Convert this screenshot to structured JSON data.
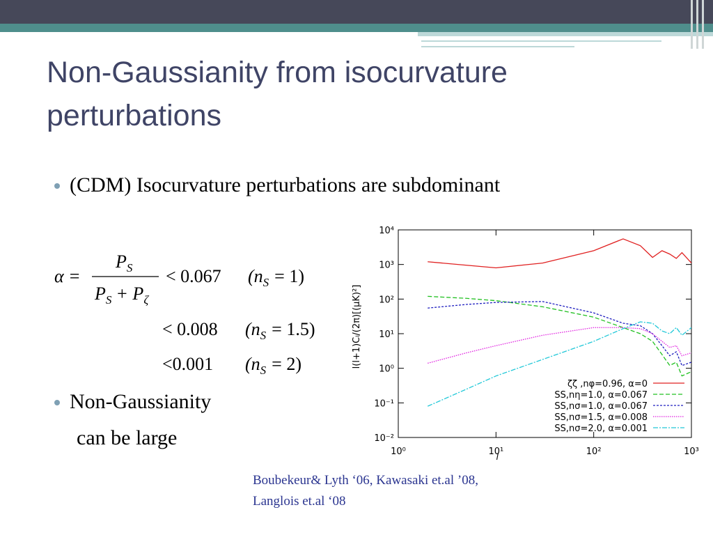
{
  "title": [
    "Non-Gaussianity from isocurvature",
    "perturbations"
  ],
  "bullets": [
    {
      "text": "(CDM) Isocurvature perturbations are subdominant"
    },
    {
      "text": "Non-Gaussianity",
      "continuation": "can be large"
    }
  ],
  "equation": {
    "lhs": "α =",
    "numerator": [
      "P",
      "S"
    ],
    "denominator": [
      "P",
      "S",
      "+ P",
      "ζ"
    ],
    "conditions": [
      {
        "bound": "< 0.067",
        "open": "(n",
        "sub": "S",
        "rhs": "= 1)"
      },
      {
        "bound": "< 0.008",
        "open": "(n",
        "sub": "S",
        "rhs": "= 1.5)"
      },
      {
        "bound": "<0.001",
        "open": "(n",
        "sub": "S",
        "rhs": "= 2)"
      }
    ]
  },
  "citation": [
    "Boubekeur& Lyth ‘06, Kawasaki et.al ’08,",
    "Langlois et.al ‘08"
  ],
  "chart_data": {
    "type": "line",
    "xlabel": "l",
    "ylabel": "l(l+1)Cₗ/(2π)[(μK)²]",
    "x": [
      2,
      5,
      10,
      30,
      100,
      200,
      300,
      400,
      500,
      600,
      700,
      800,
      1000
    ],
    "series": [
      {
        "name": "ζζ ,nφ=0.96, α=0",
        "color": "#e02020",
        "dash": "none",
        "values": [
          1200,
          950,
          800,
          1100,
          2500,
          5500,
          3500,
          1600,
          2500,
          2000,
          1500,
          2200,
          1100
        ]
      },
      {
        "name": "SS,nη=1.0, α=0.067",
        "color": "#20c020",
        "dash": "6,3",
        "values": [
          120,
          105,
          90,
          60,
          30,
          15,
          10,
          6,
          2.5,
          1.2,
          1.5,
          0.6,
          0.8
        ]
      },
      {
        "name": "SS,nσ=1.0, α=0.067",
        "color": "#2020c0",
        "dash": "3,2",
        "values": [
          55,
          70,
          80,
          85,
          40,
          20,
          17,
          10,
          4.5,
          2.3,
          3,
          1.2,
          1.5
        ]
      },
      {
        "name": "SS,nσ=1.5, α=0.008",
        "color": "#e020e0",
        "dash": "1.5,1.5",
        "values": [
          1.4,
          2.8,
          4.5,
          9,
          15,
          15,
          14,
          10,
          6,
          4,
          4.5,
          2.3,
          2.8
        ]
      },
      {
        "name": "SS,nσ=2.0, α=0.001",
        "color": "#20c8d8",
        "dash": "7,2,2,2",
        "values": [
          0.08,
          0.25,
          0.6,
          1.8,
          6,
          14,
          22,
          20,
          12,
          10,
          15,
          9,
          15
        ]
      }
    ],
    "xlim": [
      1,
      1000
    ],
    "ylim": [
      0.01,
      10000
    ],
    "xlog": true,
    "ylog": true,
    "xticks": [
      {
        "value": 1,
        "label": "10⁰"
      },
      {
        "value": 10,
        "label": "10¹"
      },
      {
        "value": 100,
        "label": "10²"
      },
      {
        "value": 1000,
        "label": "10³"
      }
    ],
    "yticks": [
      {
        "value": 0.01,
        "label": "10⁻²"
      },
      {
        "value": 0.1,
        "label": "10⁻¹"
      },
      {
        "value": 1,
        "label": "10⁰"
      },
      {
        "value": 10,
        "label": "10¹"
      },
      {
        "value": 100,
        "label": "10²"
      },
      {
        "value": 1000,
        "label": "10³"
      },
      {
        "value": 10000,
        "label": "10⁴"
      }
    ],
    "legend": "lower right"
  }
}
